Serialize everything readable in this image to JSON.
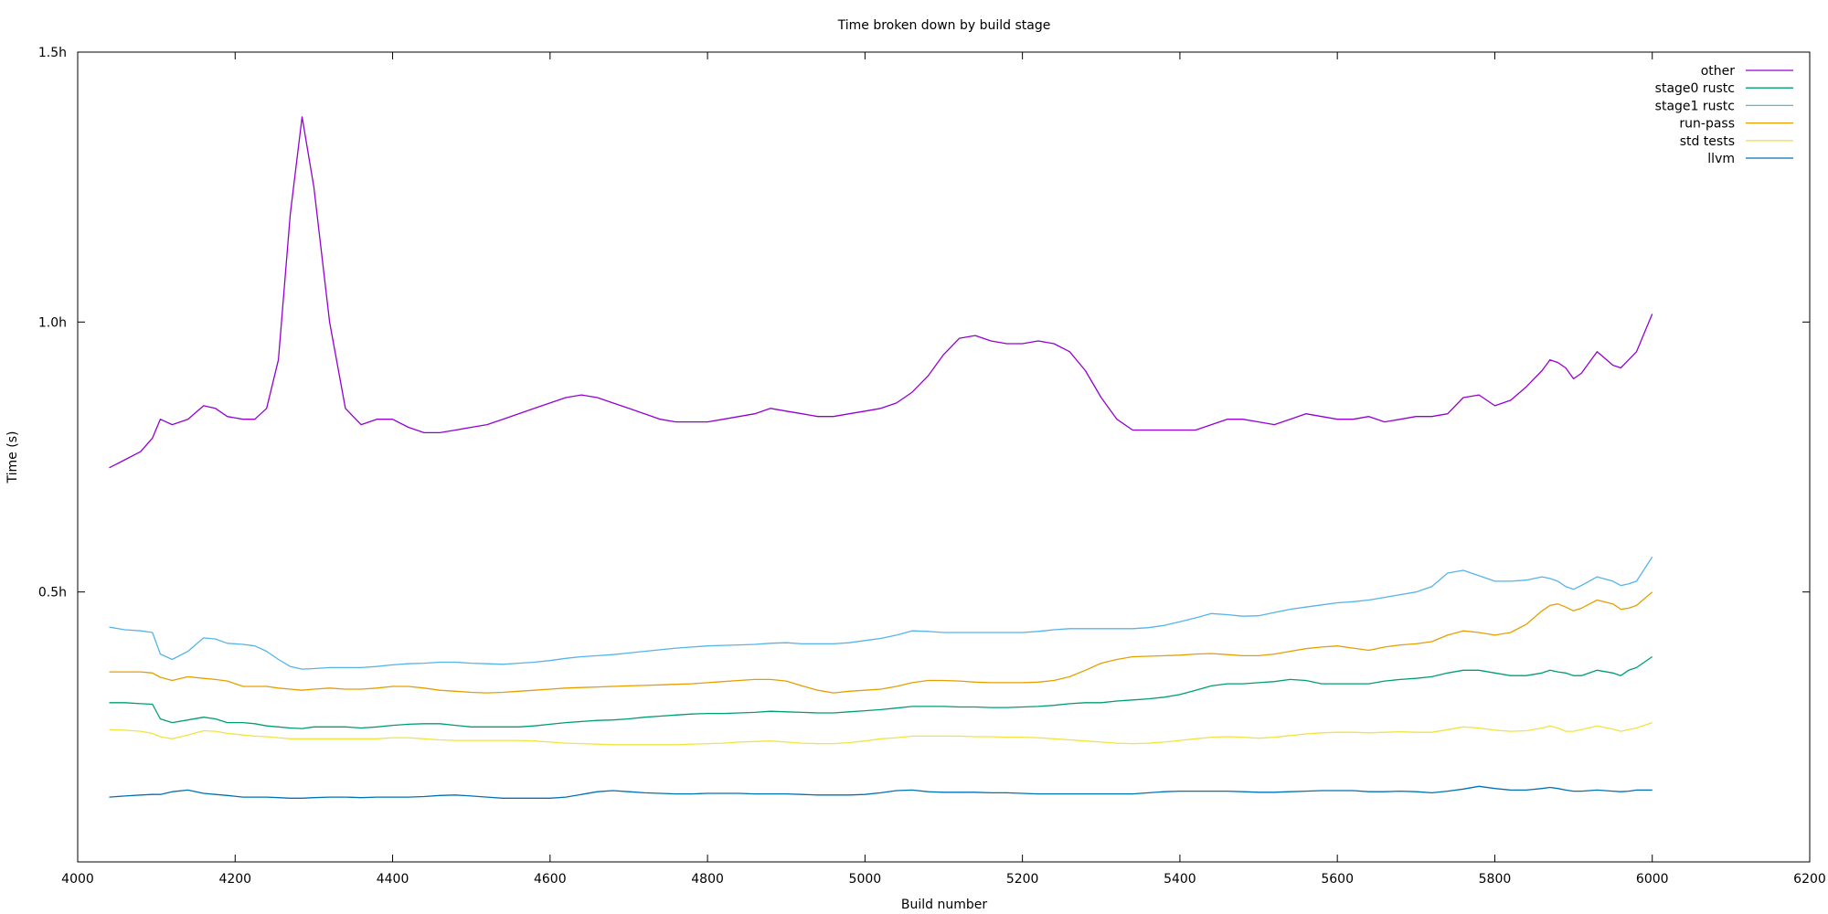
{
  "chart_data": {
    "type": "line",
    "title": "Time broken down by build stage",
    "xlabel": "Build number",
    "ylabel": "Time (s)",
    "xlim": [
      4000,
      6200
    ],
    "ylim": [
      0,
      1.5
    ],
    "x_ticks": [
      4000,
      4200,
      4400,
      4600,
      4800,
      5000,
      5200,
      5400,
      5600,
      5800,
      6000,
      6200
    ],
    "x_tick_labels": [
      "4000",
      "4200",
      "4400",
      "4600",
      "4800",
      "5000",
      "5200",
      "5400",
      "5600",
      "5800",
      "6000",
      "6200"
    ],
    "y_ticks": [
      0.5,
      1.0,
      1.5
    ],
    "y_tick_labels": [
      "0.5h",
      "1.0h",
      "1.5h"
    ],
    "grid": false,
    "legend_position": "top-right",
    "x": [
      4040,
      4060,
      4080,
      4095,
      4105,
      4120,
      4140,
      4160,
      4175,
      4190,
      4210,
      4225,
      4240,
      4255,
      4270,
      4285,
      4300,
      4320,
      4340,
      4360,
      4380,
      4400,
      4420,
      4440,
      4460,
      4480,
      4500,
      4520,
      4540,
      4560,
      4580,
      4600,
      4620,
      4640,
      4660,
      4680,
      4700,
      4720,
      4740,
      4760,
      4780,
      4800,
      4820,
      4840,
      4860,
      4880,
      4900,
      4920,
      4940,
      4960,
      4980,
      5000,
      5020,
      5040,
      5060,
      5080,
      5100,
      5120,
      5140,
      5160,
      5180,
      5200,
      5220,
      5240,
      5260,
      5280,
      5300,
      5320,
      5340,
      5360,
      5380,
      5400,
      5420,
      5440,
      5460,
      5480,
      5500,
      5520,
      5540,
      5560,
      5580,
      5600,
      5620,
      5640,
      5660,
      5680,
      5700,
      5720,
      5740,
      5760,
      5780,
      5800,
      5820,
      5840,
      5860,
      5870,
      5880,
      5890,
      5900,
      5910,
      5930,
      5950,
      5960,
      5970,
      5980,
      6000
    ],
    "series": [
      {
        "name": "other",
        "color": "#9400d3",
        "values": [
          0.73,
          0.745,
          0.76,
          0.785,
          0.82,
          0.81,
          0.82,
          0.845,
          0.84,
          0.825,
          0.82,
          0.82,
          0.84,
          0.93,
          1.2,
          1.38,
          1.25,
          1.0,
          0.84,
          0.81,
          0.82,
          0.82,
          0.805,
          0.795,
          0.795,
          0.8,
          0.805,
          0.81,
          0.82,
          0.83,
          0.84,
          0.85,
          0.86,
          0.865,
          0.86,
          0.85,
          0.84,
          0.83,
          0.82,
          0.815,
          0.815,
          0.815,
          0.82,
          0.825,
          0.83,
          0.84,
          0.835,
          0.83,
          0.825,
          0.825,
          0.83,
          0.835,
          0.84,
          0.85,
          0.87,
          0.9,
          0.94,
          0.97,
          0.975,
          0.965,
          0.96,
          0.96,
          0.965,
          0.96,
          0.945,
          0.91,
          0.86,
          0.82,
          0.8,
          0.8,
          0.8,
          0.8,
          0.8,
          0.81,
          0.82,
          0.82,
          0.815,
          0.81,
          0.82,
          0.83,
          0.825,
          0.82,
          0.82,
          0.825,
          0.815,
          0.82,
          0.825,
          0.825,
          0.83,
          0.86,
          0.865,
          0.845,
          0.855,
          0.88,
          0.91,
          0.93,
          0.925,
          0.915,
          0.895,
          0.905,
          0.945,
          0.92,
          0.915,
          0.93,
          0.945,
          1.015
        ]
      },
      {
        "name": "stage0 rustc",
        "color": "#009e73",
        "values": [
          0.295,
          0.295,
          0.293,
          0.292,
          0.265,
          0.258,
          0.263,
          0.268,
          0.265,
          0.258,
          0.258,
          0.256,
          0.252,
          0.25,
          0.248,
          0.247,
          0.25,
          0.25,
          0.25,
          0.248,
          0.25,
          0.253,
          0.255,
          0.256,
          0.256,
          0.253,
          0.25,
          0.25,
          0.25,
          0.25,
          0.252,
          0.255,
          0.258,
          0.26,
          0.262,
          0.263,
          0.265,
          0.268,
          0.27,
          0.272,
          0.274,
          0.275,
          0.275,
          0.276,
          0.277,
          0.279,
          0.278,
          0.277,
          0.276,
          0.276,
          0.278,
          0.28,
          0.282,
          0.285,
          0.288,
          0.288,
          0.288,
          0.287,
          0.287,
          0.286,
          0.286,
          0.287,
          0.288,
          0.29,
          0.293,
          0.295,
          0.295,
          0.298,
          0.3,
          0.302,
          0.305,
          0.31,
          0.318,
          0.326,
          0.33,
          0.33,
          0.332,
          0.334,
          0.338,
          0.336,
          0.33,
          0.33,
          0.33,
          0.33,
          0.335,
          0.338,
          0.34,
          0.343,
          0.35,
          0.355,
          0.355,
          0.35,
          0.345,
          0.345,
          0.35,
          0.355,
          0.352,
          0.35,
          0.345,
          0.345,
          0.355,
          0.35,
          0.345,
          0.355,
          0.36,
          0.38
        ]
      },
      {
        "name": "stage1 rustc",
        "color": "#56b4e9",
        "values": [
          0.435,
          0.43,
          0.428,
          0.425,
          0.385,
          0.375,
          0.39,
          0.415,
          0.413,
          0.405,
          0.403,
          0.4,
          0.39,
          0.375,
          0.362,
          0.357,
          0.358,
          0.36,
          0.36,
          0.36,
          0.362,
          0.365,
          0.367,
          0.368,
          0.37,
          0.37,
          0.368,
          0.367,
          0.366,
          0.368,
          0.37,
          0.373,
          0.377,
          0.38,
          0.382,
          0.384,
          0.387,
          0.39,
          0.393,
          0.396,
          0.398,
          0.4,
          0.401,
          0.402,
          0.403,
          0.405,
          0.406,
          0.404,
          0.404,
          0.404,
          0.406,
          0.41,
          0.414,
          0.42,
          0.428,
          0.427,
          0.425,
          0.425,
          0.425,
          0.425,
          0.425,
          0.425,
          0.427,
          0.43,
          0.432,
          0.432,
          0.432,
          0.432,
          0.432,
          0.434,
          0.438,
          0.445,
          0.452,
          0.46,
          0.458,
          0.455,
          0.456,
          0.462,
          0.468,
          0.472,
          0.476,
          0.48,
          0.482,
          0.485,
          0.49,
          0.495,
          0.5,
          0.51,
          0.535,
          0.54,
          0.53,
          0.52,
          0.52,
          0.522,
          0.528,
          0.525,
          0.52,
          0.51,
          0.505,
          0.512,
          0.528,
          0.52,
          0.512,
          0.515,
          0.52,
          0.565
        ]
      },
      {
        "name": "run-pass",
        "color": "#e69f00",
        "values": [
          0.352,
          0.352,
          0.352,
          0.35,
          0.342,
          0.336,
          0.343,
          0.34,
          0.338,
          0.335,
          0.325,
          0.325,
          0.325,
          0.322,
          0.32,
          0.318,
          0.32,
          0.322,
          0.32,
          0.32,
          0.322,
          0.325,
          0.325,
          0.322,
          0.318,
          0.316,
          0.314,
          0.313,
          0.314,
          0.316,
          0.318,
          0.32,
          0.322,
          0.323,
          0.324,
          0.325,
          0.326,
          0.327,
          0.328,
          0.329,
          0.33,
          0.332,
          0.334,
          0.336,
          0.338,
          0.338,
          0.335,
          0.326,
          0.318,
          0.313,
          0.316,
          0.318,
          0.32,
          0.325,
          0.332,
          0.336,
          0.336,
          0.335,
          0.333,
          0.332,
          0.332,
          0.332,
          0.333,
          0.336,
          0.343,
          0.355,
          0.368,
          0.375,
          0.38,
          0.381,
          0.382,
          0.383,
          0.385,
          0.386,
          0.384,
          0.382,
          0.382,
          0.385,
          0.39,
          0.395,
          0.398,
          0.4,
          0.396,
          0.392,
          0.398,
          0.402,
          0.404,
          0.408,
          0.42,
          0.428,
          0.425,
          0.42,
          0.425,
          0.44,
          0.465,
          0.475,
          0.478,
          0.472,
          0.465,
          0.47,
          0.485,
          0.478,
          0.468,
          0.47,
          0.475,
          0.5
        ]
      },
      {
        "name": "std tests",
        "color": "#f0e442",
        "values": [
          0.245,
          0.244,
          0.242,
          0.238,
          0.232,
          0.228,
          0.235,
          0.243,
          0.242,
          0.238,
          0.235,
          0.233,
          0.232,
          0.23,
          0.228,
          0.228,
          0.228,
          0.228,
          0.228,
          0.228,
          0.228,
          0.23,
          0.23,
          0.228,
          0.226,
          0.225,
          0.225,
          0.225,
          0.225,
          0.225,
          0.224,
          0.222,
          0.22,
          0.219,
          0.218,
          0.217,
          0.217,
          0.217,
          0.217,
          0.217,
          0.218,
          0.219,
          0.22,
          0.222,
          0.223,
          0.224,
          0.222,
          0.22,
          0.219,
          0.219,
          0.221,
          0.224,
          0.228,
          0.23,
          0.233,
          0.233,
          0.233,
          0.233,
          0.232,
          0.232,
          0.231,
          0.231,
          0.23,
          0.228,
          0.226,
          0.224,
          0.222,
          0.22,
          0.219,
          0.22,
          0.222,
          0.225,
          0.228,
          0.231,
          0.232,
          0.231,
          0.229,
          0.231,
          0.234,
          0.237,
          0.239,
          0.24,
          0.24,
          0.239,
          0.24,
          0.241,
          0.24,
          0.24,
          0.245,
          0.25,
          0.248,
          0.244,
          0.242,
          0.243,
          0.248,
          0.252,
          0.248,
          0.242,
          0.242,
          0.245,
          0.252,
          0.246,
          0.242,
          0.245,
          0.248,
          0.258
        ]
      },
      {
        "name": "llvm",
        "color": "#0072b2",
        "values": [
          0.12,
          0.122,
          0.124,
          0.125,
          0.125,
          0.13,
          0.133,
          0.127,
          0.125,
          0.123,
          0.12,
          0.12,
          0.12,
          0.119,
          0.118,
          0.118,
          0.119,
          0.12,
          0.12,
          0.119,
          0.12,
          0.12,
          0.12,
          0.121,
          0.123,
          0.124,
          0.122,
          0.12,
          0.118,
          0.118,
          0.118,
          0.118,
          0.12,
          0.125,
          0.13,
          0.132,
          0.13,
          0.128,
          0.127,
          0.126,
          0.126,
          0.127,
          0.127,
          0.127,
          0.126,
          0.126,
          0.126,
          0.125,
          0.124,
          0.124,
          0.124,
          0.125,
          0.128,
          0.132,
          0.133,
          0.13,
          0.129,
          0.129,
          0.129,
          0.128,
          0.128,
          0.127,
          0.126,
          0.126,
          0.126,
          0.126,
          0.126,
          0.126,
          0.126,
          0.128,
          0.13,
          0.131,
          0.131,
          0.131,
          0.131,
          0.13,
          0.129,
          0.129,
          0.13,
          0.131,
          0.132,
          0.132,
          0.132,
          0.13,
          0.13,
          0.131,
          0.13,
          0.128,
          0.131,
          0.135,
          0.14,
          0.136,
          0.133,
          0.133,
          0.136,
          0.138,
          0.136,
          0.133,
          0.131,
          0.131,
          0.133,
          0.131,
          0.13,
          0.131,
          0.133,
          0.133
        ]
      }
    ]
  }
}
